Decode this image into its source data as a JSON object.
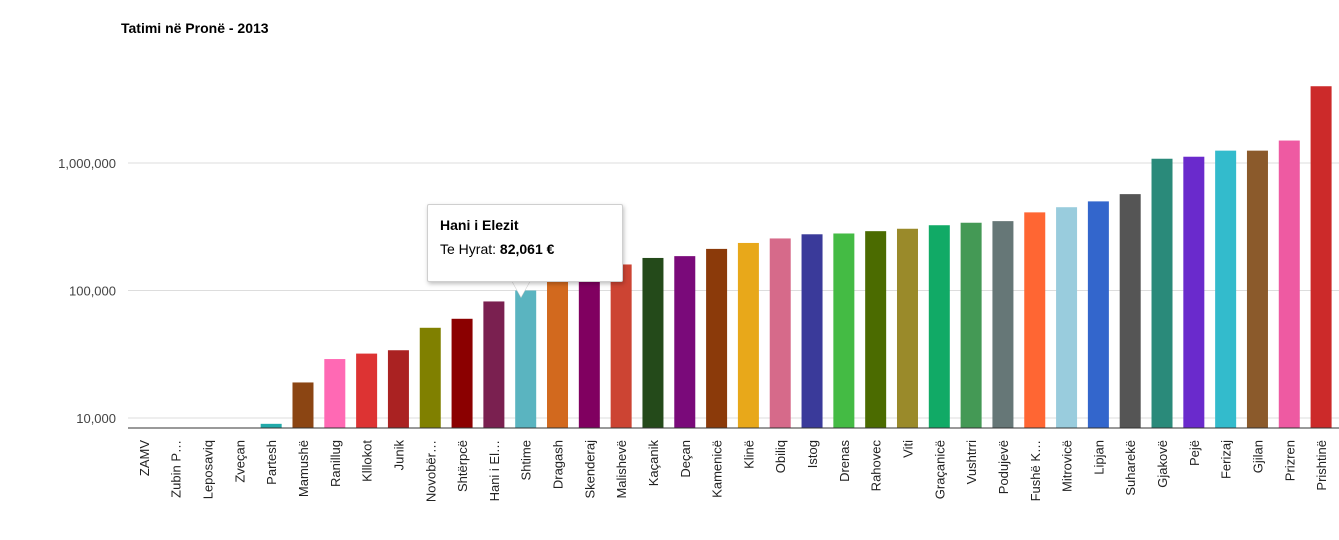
{
  "chart_data": {
    "type": "bar",
    "title": "Tatimi në Pronë - 2013",
    "y_scale": "log",
    "ylim": [
      8000,
      4000000
    ],
    "ytick_values": [
      10000,
      100000,
      1000000
    ],
    "ytick_labels": [
      "10,000",
      "100,000",
      "1,000,000"
    ],
    "grid": true,
    "legend": "none",
    "categories": [
      "ZAMV",
      "Zubin P…",
      "Leposaviq",
      "Zveçan",
      "Partesh",
      "Mamushë",
      "Ranillug",
      "Klllokot",
      "Junik",
      "Novobër…",
      "Shtërpcë",
      "Hani i El…",
      "Shtime",
      "Dragash",
      "Skenderaj",
      "Malishevë",
      "Kaçanik",
      "Deçan",
      "Kamenicë",
      "Klinë",
      "Obiliq",
      "Istog",
      "Drenas",
      "Rahovec",
      "Viti",
      "Graçanicë",
      "Vushtrri",
      "Podujevë",
      "Fushë K…",
      "Mitrovicë",
      "Lipjan",
      "Suharekë",
      "Gjakovë",
      "Pejë",
      "Ferizaj",
      "Gjilan",
      "Prizren",
      "Prishtinë"
    ],
    "values": [
      0,
      0,
      0,
      0,
      9000,
      19000,
      29000,
      32000,
      34000,
      51000,
      60000,
      82061,
      100000,
      120000,
      140000,
      160000,
      180000,
      186000,
      212000,
      236000,
      256000,
      276000,
      280000,
      292000,
      305000,
      325000,
      340000,
      350000,
      410000,
      450000,
      500000,
      570000,
      1080000,
      1120000,
      1250000,
      1250000,
      1500000,
      4000000
    ],
    "colors": [
      "#3366cc",
      "#dc3912",
      "#ff9900",
      "#109618",
      "#22aaaa",
      "#8b4513",
      "#ff69b4",
      "#dd3333",
      "#aa2222",
      "#808000",
      "#8b0000",
      "#7a2050",
      "#5ab4c0",
      "#d2691e",
      "#800060",
      "#cc4433",
      "#244a1a",
      "#7a0a7a",
      "#8b3a0a",
      "#e8a81a",
      "#d66a8a",
      "#3a3a9a",
      "#44bb44",
      "#4b6b00",
      "#9a8a2a",
      "#11aa66",
      "#449955",
      "#667777",
      "#ff6633",
      "#99ccdd",
      "#3366cc",
      "#555555",
      "#2a8a7a",
      "#6a2acc",
      "#33bbcc",
      "#8b5a2b",
      "#ee5aa2",
      "#cc2a2a"
    ],
    "tooltip": {
      "title": "Hani i Elezit",
      "label": "Te Hyrat:",
      "value": "82,061 €"
    }
  }
}
